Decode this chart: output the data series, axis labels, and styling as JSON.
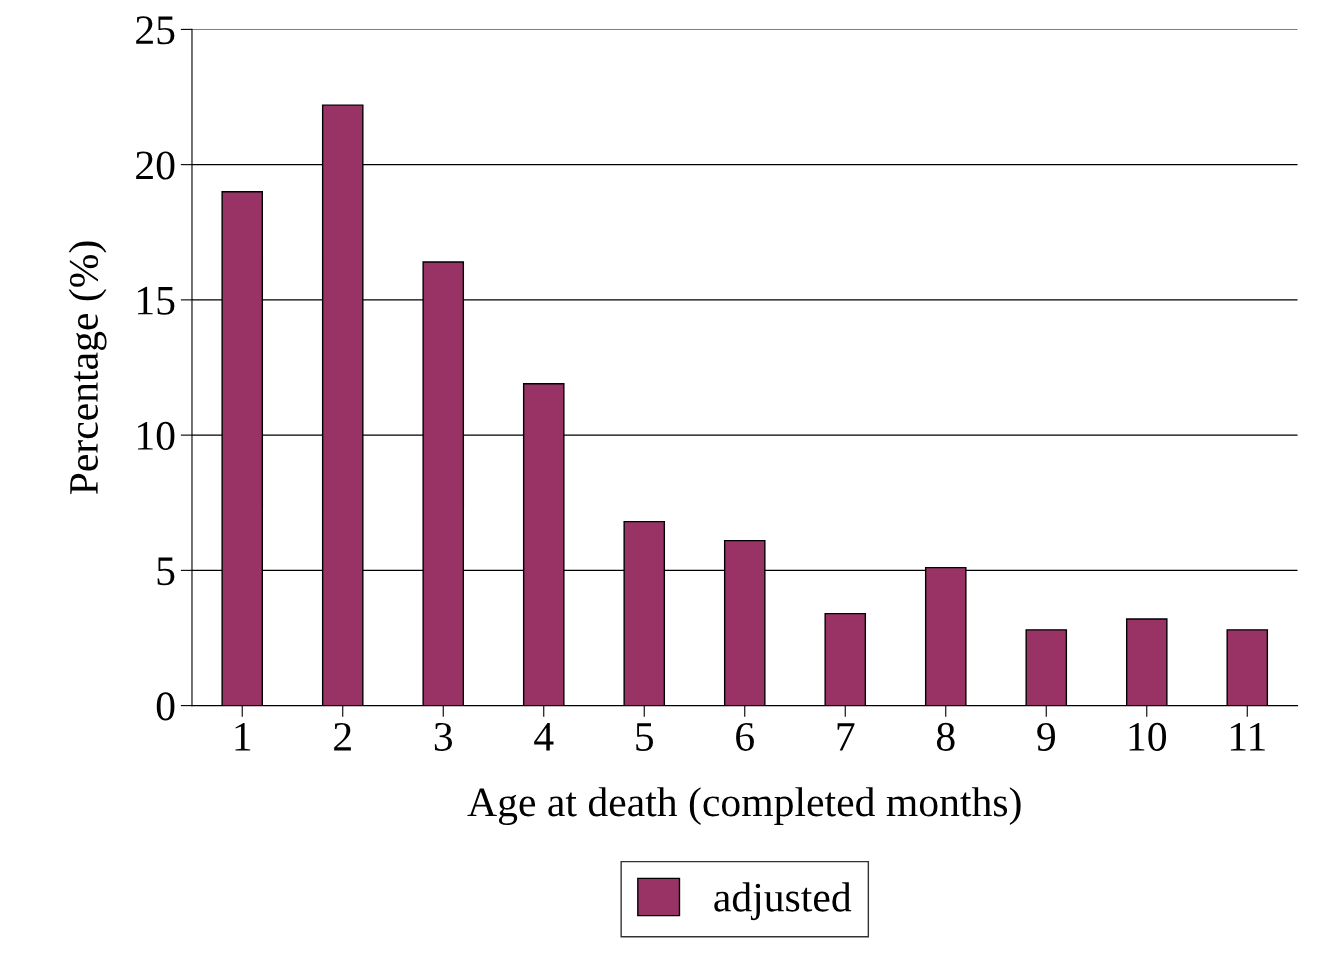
{
  "chart_data": {
    "type": "bar",
    "xlabel": "Age at death (completed months)",
    "ylabel": "Percentage (%)",
    "categories": [
      "1",
      "2",
      "3",
      "4",
      "5",
      "6",
      "7",
      "8",
      "9",
      "10",
      "11"
    ],
    "series": [
      {
        "name": "adjusted",
        "color": "#993366",
        "values": [
          19.0,
          22.2,
          16.4,
          11.9,
          6.8,
          6.1,
          3.4,
          5.1,
          2.8,
          3.2,
          2.8
        ]
      }
    ],
    "ylim": [
      0,
      25
    ],
    "yticks": [
      0,
      5,
      10,
      15,
      20,
      25
    ],
    "grid": "y",
    "legend": "bottom"
  }
}
